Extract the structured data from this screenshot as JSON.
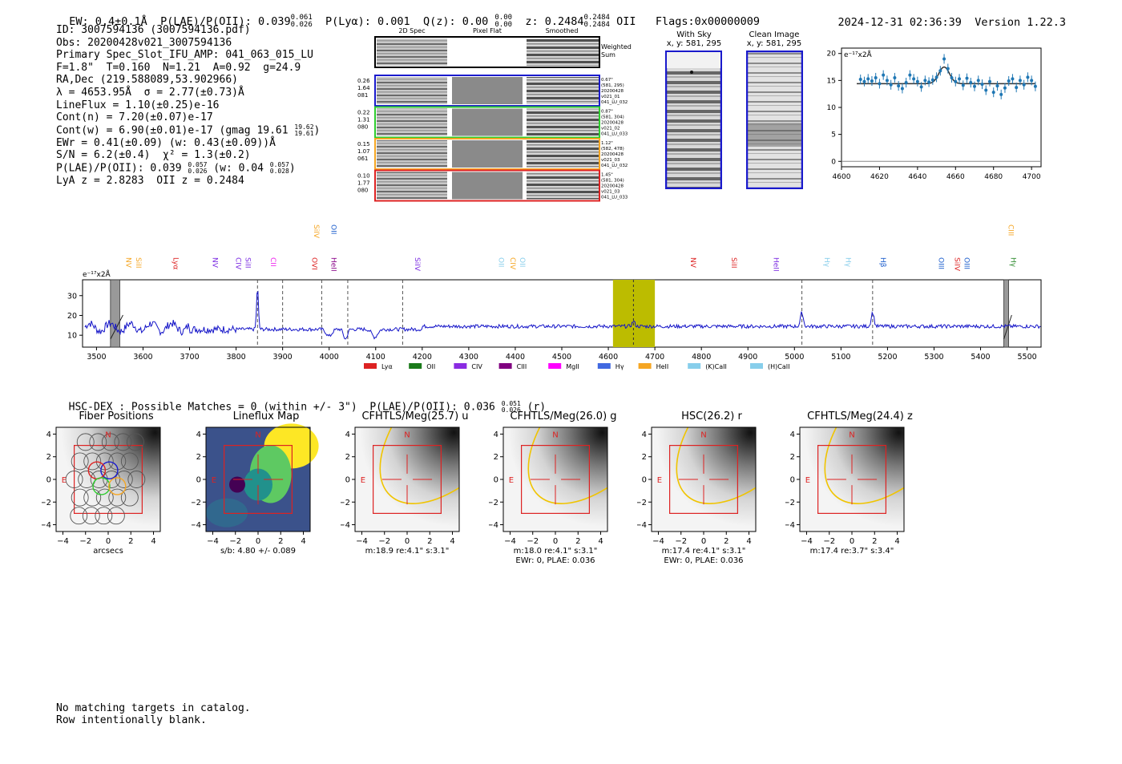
{
  "header": {
    "ew": "EW: 0.4±0.1Å",
    "plae": "P(LAE)/P(OII): 0.039",
    "plae_sup": "0.061",
    "plae_sub": "0.026",
    "plya": "P(Lyα): 0.001",
    "qz": "Q(z): 0.00",
    "qz_sup": "0.00",
    "qz_sub": "0.00",
    "z": "z: 0.2484",
    "z_sup": "0.2484",
    "z_sub": "0.2484",
    "z_line": "OII",
    "flags": "Flags:0x00000009",
    "timestamp": "2024-12-31 02:36:39",
    "version": "Version 1.22.3"
  },
  "info": {
    "lines": [
      "ID: 3007594136 (3007594136.pdf)",
      "Obs: 20200428v021_3007594136",
      "Primary Spec_Slot_IFU_AMP: 041_063_015_LU",
      "F=1.8\"  T=0.160  N=1.21  A=0.92  g=24.9",
      "RA,Dec (219.588089,53.902966)",
      "λ = 4653.95Å  σ = 2.77(±0.73)Å",
      "LineFlux = 1.10(±0.25)e-16",
      "Cont(n) = 7.20(±0.07)e-17",
      "Cont(w) = 6.90(±0.01)e-17 (gmag 19.61",
      "EWr = 0.41(±0.09) (w: 0.43(±0.09))Å",
      "S/N = 6.2(±0.4)  χ² = 1.3(±0.2)",
      "P(LAE)/P(OII): 0.039",
      "LyA z = 2.8283  OII z = 0.2484"
    ],
    "gmag_sup": "19.62",
    "gmag_sub": "19.61",
    "plae2_sup": "0.057",
    "plae2_sub": "0.026",
    "plae2_tail": "(w: 0.04",
    "plae2_tail_sup": "0.057",
    "plae2_tail_sub": "0.028"
  },
  "spec2d": {
    "col_titles": [
      "2D Spec",
      "Pixel Flat",
      "Smoothed"
    ],
    "weighted_label": "Weighted\nSum",
    "rows": [
      {
        "left": [
          "0.26",
          "1.64",
          "081"
        ],
        "right": [
          "0.67\"",
          "(581, 295)",
          "20200428",
          "v021_01",
          "041_LU_032"
        ],
        "color": "#1a1acc"
      },
      {
        "left": [
          "0.22",
          "1.31",
          "080"
        ],
        "right": [
          "0.87\"",
          "(581, 304)",
          "20200428",
          "v021_02",
          "041_LU_033"
        ],
        "color": "#2ecc2e"
      },
      {
        "left": [
          "0.15",
          "1.07",
          "061"
        ],
        "right": [
          "1.12\"",
          "(582, 478)",
          "20200428",
          "v021_03",
          "041_LU_032"
        ],
        "color": "#f5a623"
      },
      {
        "left": [
          "0.10",
          "1.77",
          "080"
        ],
        "right": [
          "1.45\"",
          "(581, 304)",
          "20200428",
          "v021_03",
          "041_LU_033"
        ],
        "color": "#dd2222"
      }
    ]
  },
  "sky": {
    "with_sky_title": "With Sky",
    "with_sky_xy": "x, y: 581, 295",
    "clean_title": "Clean Image",
    "clean_xy": "x, y: 581, 295"
  },
  "zoom_chart_data": {
    "type": "scatter",
    "ylabel": "e⁻¹⁷x2Å",
    "xlim": [
      4600,
      4705
    ],
    "ylim": [
      -1,
      21
    ],
    "xticks": [
      4600,
      4620,
      4640,
      4660,
      4680,
      4700
    ],
    "yticks": [
      0,
      5,
      10,
      15,
      20
    ],
    "x": [
      4610,
      4612,
      4614,
      4616,
      4618,
      4620,
      4622,
      4624,
      4626,
      4628,
      4630,
      4632,
      4634,
      4636,
      4638,
      4640,
      4642,
      4644,
      4646,
      4648,
      4650,
      4652,
      4654,
      4656,
      4658,
      4660,
      4662,
      4664,
      4666,
      4668,
      4670,
      4672,
      4674,
      4676,
      4678,
      4680,
      4682,
      4684,
      4686,
      4688,
      4690,
      4692,
      4694,
      4696,
      4698,
      4700,
      4702
    ],
    "y": [
      15.2,
      14.8,
      15.3,
      14.9,
      15.5,
      14.4,
      16.0,
      15.0,
      14.2,
      15.5,
      14.0,
      13.5,
      14.6,
      16.0,
      15.3,
      14.8,
      13.8,
      15.0,
      14.7,
      15.1,
      15.6,
      16.8,
      19.0,
      17.2,
      15.5,
      14.8,
      15.3,
      14.1,
      15.4,
      14.6,
      13.9,
      15.0,
      14.3,
      13.2,
      14.8,
      12.8,
      14.0,
      12.4,
      13.6,
      14.9,
      15.3,
      13.7,
      15.0,
      14.2,
      15.6,
      15.0,
      13.9
    ],
    "fit_continuum": 14.4,
    "fit_peak": 3.1,
    "fit_center": 4654,
    "fit_sigma": 2.8
  },
  "spectrum_chart_data": {
    "type": "line",
    "ylabel": "e⁻¹⁷x2Å",
    "xlim": [
      3470,
      5530
    ],
    "ylim": [
      4,
      38
    ],
    "xticks": [
      3500,
      3600,
      3700,
      3800,
      3900,
      4000,
      4100,
      4200,
      4300,
      4400,
      4500,
      4600,
      4700,
      4800,
      4900,
      5000,
      5100,
      5200,
      5300,
      5400,
      5500
    ],
    "yticks": [
      10,
      20,
      30
    ],
    "highlight_band": [
      4610,
      4700
    ],
    "highlight_center": 4654,
    "masked_bands": [
      [
        3530,
        3550
      ],
      [
        5450,
        5460
      ]
    ],
    "dashed_lines": [
      3846,
      3900,
      3984,
      4040,
      4158,
      5016,
      5168
    ],
    "peaks": [
      {
        "x": 3846,
        "amp": 21,
        "w": 2
      },
      {
        "x": 4000,
        "amp": -3.5,
        "w": 6
      },
      {
        "x": 4035,
        "amp": -5,
        "w": 4
      },
      {
        "x": 4098,
        "amp": -4,
        "w": 6
      },
      {
        "x": 4654,
        "amp": 2.5,
        "w": 3
      },
      {
        "x": 5016,
        "amp": 7,
        "w": 3
      },
      {
        "x": 5168,
        "amp": 7,
        "w": 3
      }
    ],
    "line_labels": [
      {
        "name": "NV",
        "x": 3559,
        "color": "#f5a623",
        "row": 1
      },
      {
        "name": "SiII",
        "x": 3580,
        "color": "#f5a623",
        "row": 1
      },
      {
        "name": "Lyα",
        "x": 3660,
        "color": "#dd2222",
        "row": 1
      },
      {
        "name": "NV",
        "x": 3745,
        "color": "#7b2be2",
        "row": 1
      },
      {
        "name": "CIV",
        "x": 3795,
        "color": "#7b2be2",
        "row": 1
      },
      {
        "name": "SiII",
        "x": 3815,
        "color": "#7b2be2",
        "row": 1
      },
      {
        "name": "CII",
        "x": 3870,
        "color": "#ee22ee",
        "row": 1
      },
      {
        "name": "OVI",
        "x": 3958,
        "color": "#dd2222",
        "row": 1
      },
      {
        "name": "HeII",
        "x": 4000,
        "color": "#880088",
        "row": 1
      },
      {
        "name": "SiIV",
        "x": 3963,
        "color": "#f5a623",
        "row": 0
      },
      {
        "name": "OII",
        "x": 4000,
        "color": "#1a5ccc",
        "row": 0
      },
      {
        "name": "SiIV",
        "x": 4180,
        "color": "#7b2be2",
        "row": 1
      },
      {
        "name": "OII",
        "x": 4360,
        "color": "#87ceeb",
        "row": 1
      },
      {
        "name": "CIV",
        "x": 4385,
        "color": "#f5a623",
        "row": 1
      },
      {
        "name": "OII",
        "x": 4405,
        "color": "#87ceeb",
        "row": 1
      },
      {
        "name": "NV",
        "x": 4772,
        "color": "#dd2222",
        "row": 1
      },
      {
        "name": "SiII",
        "x": 4860,
        "color": "#dd2222",
        "row": 1
      },
      {
        "name": "HeII",
        "x": 4950,
        "color": "#7b2be2",
        "row": 1
      },
      {
        "name": "Hγ",
        "x": 5060,
        "color": "#87ceeb",
        "row": 1
      },
      {
        "name": "Hγ",
        "x": 5105,
        "color": "#87ceeb",
        "row": 1
      },
      {
        "name": "Hβ",
        "x": 5180,
        "color": "#1a5ccc",
        "row": 1
      },
      {
        "name": "OIII",
        "x": 5305,
        "color": "#1a5ccc",
        "row": 1
      },
      {
        "name": "SiIV",
        "x": 5340,
        "color": "#dd2222",
        "row": 1
      },
      {
        "name": "OIII",
        "x": 5360,
        "color": "#1a5ccc",
        "row": 1
      },
      {
        "name": "CIII",
        "x": 5455,
        "color": "#f5a623",
        "row": 0
      },
      {
        "name": "Hγ",
        "x": 5460,
        "color": "#2e8b2e",
        "row": 1
      }
    ],
    "legend": [
      {
        "name": "Lyα",
        "color": "#dd2222"
      },
      {
        "name": "OII",
        "color": "#1a7a1a"
      },
      {
        "name": "CIV",
        "color": "#8a2be2"
      },
      {
        "name": "CIII",
        "color": "#800080"
      },
      {
        "name": "MgII",
        "color": "#ff00ff"
      },
      {
        "name": "Hγ",
        "color": "#4169e1"
      },
      {
        "name": "HeII",
        "color": "#f5a623"
      },
      {
        "name": "(K)CaII",
        "color": "#87ceeb"
      },
      {
        "name": "(H)CaII",
        "color": "#87ceeb"
      }
    ]
  },
  "hsc": {
    "prefix": "HSC-DEX : Possible Matches = 0 (within +/- 3\")  P(LAE)/P(OII): 0.036",
    "sup": "0.051",
    "sub": "0.026",
    "suffix": "(r)"
  },
  "cutouts": {
    "tick_values": [
      -4,
      -2,
      0,
      2,
      4
    ],
    "north": "N",
    "east": "E",
    "tiles": [
      {
        "title": "Fiber Positions",
        "cap1": "arcsecs",
        "cap2": "",
        "kind": "fiber"
      },
      {
        "title": "Lineflux Map",
        "cap1": "s/b: 4.80 +/- 0.089",
        "cap2": "",
        "kind": "flux"
      },
      {
        "title": "CFHTLS/Meg(25.7) u",
        "cap1": "m:18.9  re:4.1\"  s:3.1\"",
        "cap2": "",
        "kind": "img"
      },
      {
        "title": "CFHTLS/Meg(26.0) g",
        "cap1": "m:18.0  re:4.1\"  s:3.1\"",
        "cap2": "EWr: 0, PLAE: 0.036",
        "kind": "img"
      },
      {
        "title": "HSC(26.2) r",
        "cap1": "m:17.4  re:4.1\"  s:3.1\"",
        "cap2": "EWr: 0, PLAE: 0.036",
        "kind": "img"
      },
      {
        "title": "CFHTLS/Meg(24.4) z",
        "cap1": "m:17.4  re:3.7\"  s:3.4\"",
        "cap2": "",
        "kind": "img"
      }
    ]
  },
  "footer": {
    "line1": "No matching targets in catalog.",
    "line2": "Row intentionally blank."
  }
}
